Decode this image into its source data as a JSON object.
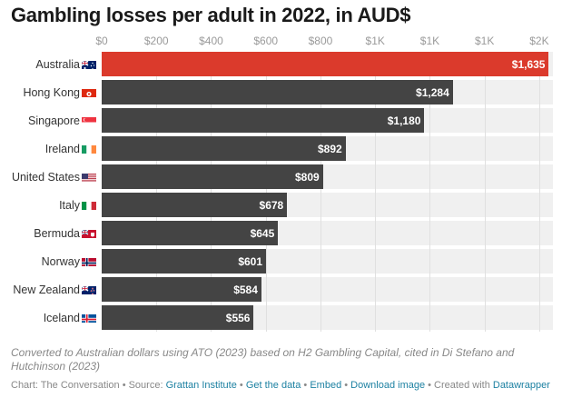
{
  "chart_data": {
    "type": "bar",
    "orientation": "horizontal",
    "title": "Gambling losses per adult in 2022, in AUD$",
    "xlim": [
      0,
      1650
    ],
    "ticks": [
      0,
      200,
      400,
      600,
      800,
      1000,
      1200,
      1400,
      1600
    ],
    "tick_labels": [
      "$0",
      "$200",
      "$400",
      "$600",
      "$800",
      "$1K",
      "$1K",
      "$1K",
      "$2K"
    ],
    "grid": true,
    "categories": [
      "Australia",
      "Hong Kong",
      "Singapore",
      "Ireland",
      "United States",
      "Italy",
      "Bermuda",
      "Norway",
      "New Zealand",
      "Iceland"
    ],
    "values": [
      1635,
      1284,
      1180,
      892,
      809,
      678,
      645,
      601,
      584,
      556
    ],
    "value_labels": [
      "$1,635",
      "$1,284",
      "$1,180",
      "$892",
      "$809",
      "$678",
      "$645",
      "$601",
      "$584",
      "$556"
    ],
    "flags": [
      "australia-flag",
      "hong-kong-flag",
      "singapore-flag",
      "ireland-flag",
      "united-states-flag",
      "italy-flag",
      "bermuda-flag",
      "norway-flag",
      "new-zealand-flag",
      "iceland-flag"
    ],
    "highlight_color": "#db3a2c",
    "bar_color": "#444444",
    "background_color": "#f0f0f0"
  },
  "note": "Converted to Australian dollars using ATO (2023) based on H2 Gambling Capital, cited in Di Stefano and Hutchinson (2023)",
  "footer": {
    "prefix": "Chart: The Conversation • Source: ",
    "source": "Grattan Institute",
    "sep1": " • ",
    "get_data": "Get the data",
    "sep2": " • ",
    "embed": "Embed",
    "sep3": " • ",
    "download": "Download image",
    "sep4": " • Created with ",
    "datawrapper": "Datawrapper"
  }
}
